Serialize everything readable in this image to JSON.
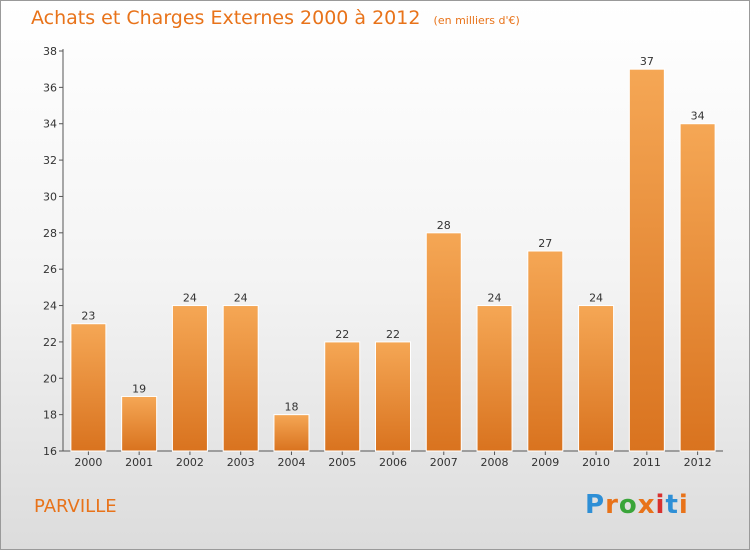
{
  "header": {
    "title": "Achats et Charges Externes 2000 à 2012",
    "unit": "(en milliers d'€)"
  },
  "footer": {
    "commune": "PARVILLE",
    "logo": "Proxiti",
    "logo_colors": [
      "#2e8fd6",
      "#e8731a",
      "#3aa53a",
      "#e8731a",
      "#d8312e",
      "#2e8fd6",
      "#e8731a"
    ]
  },
  "colors": {
    "bar_top": "#f5a755",
    "bar_bottom": "#d9731f",
    "accent": "#e8731a"
  },
  "chart_data": {
    "type": "bar",
    "title": "Achats et Charges Externes 2000 à 2012",
    "subtitle": "(en milliers d'€)",
    "xlabel": "",
    "ylabel": "",
    "categories": [
      "2000",
      "2001",
      "2002",
      "2003",
      "2004",
      "2005",
      "2006",
      "2007",
      "2008",
      "2009",
      "2010",
      "2011",
      "2012"
    ],
    "values": [
      23,
      19,
      24,
      24,
      18,
      22,
      22,
      28,
      24,
      27,
      24,
      37,
      34
    ],
    "ylim": [
      16,
      38
    ],
    "yticks": [
      16,
      18,
      20,
      22,
      24,
      26,
      28,
      30,
      32,
      34,
      36,
      38
    ],
    "grid": false,
    "data_labels": true
  }
}
